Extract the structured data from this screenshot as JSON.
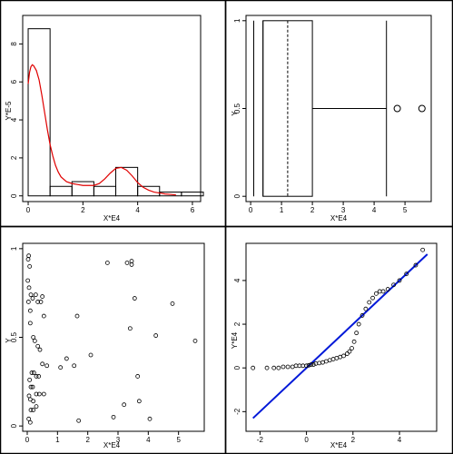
{
  "chart_data": [
    {
      "type": "bar",
      "panel": "top-left",
      "xlabel": "X*E4",
      "ylabel": "Y*E-5",
      "xlim": [
        -0.2,
        6.3
      ],
      "ylim": [
        -0.3,
        9.5
      ],
      "xticks": [
        0,
        2,
        4,
        6
      ],
      "yticks": [
        0,
        2,
        4,
        6,
        8
      ],
      "bins": [
        {
          "x0": 0,
          "x1": 0.8,
          "height": 8.8
        },
        {
          "x0": 0.8,
          "x1": 1.6,
          "height": 0.5
        },
        {
          "x0": 1.6,
          "x1": 2.4,
          "height": 0.75
        },
        {
          "x0": 2.4,
          "x1": 3.2,
          "height": 0.5
        },
        {
          "x0": 3.2,
          "x1": 4.0,
          "height": 1.5
        },
        {
          "x0": 4.0,
          "x1": 4.8,
          "height": 0.5
        },
        {
          "x0": 4.8,
          "x1": 5.6,
          "height": 0.2
        },
        {
          "x0": 5.6,
          "x1": 6.4,
          "height": 0.2
        }
      ],
      "density": {
        "color": "#e00000",
        "x": [
          0,
          0.05,
          0.1,
          0.15,
          0.2,
          0.3,
          0.4,
          0.5,
          0.6,
          0.7,
          0.8,
          0.9,
          1.0,
          1.1,
          1.2,
          1.4,
          1.6,
          1.8,
          2.0,
          2.2,
          2.4,
          2.6,
          2.8,
          3.0,
          3.2,
          3.4,
          3.6,
          3.8,
          4.0,
          4.2,
          4.4,
          4.6,
          4.8,
          5.0,
          5.2,
          5.4
        ],
        "y": [
          5.9,
          6.5,
          6.8,
          6.9,
          6.85,
          6.6,
          6.1,
          5.3,
          4.4,
          3.5,
          2.7,
          2.1,
          1.6,
          1.25,
          1.0,
          0.75,
          0.65,
          0.6,
          0.55,
          0.55,
          0.55,
          0.65,
          0.9,
          1.2,
          1.45,
          1.5,
          1.35,
          1.05,
          0.7,
          0.45,
          0.3,
          0.2,
          0.15,
          0.1,
          0.08,
          0.05
        ]
      }
    },
    {
      "type": "boxplot",
      "panel": "top-right",
      "xlabel": "X*E4",
      "ylabel": "Y",
      "xlim": [
        -0.15,
        5.85
      ],
      "ylim": [
        -0.03,
        1.03
      ],
      "xticks": [
        0,
        1,
        2,
        3,
        4,
        5
      ],
      "yticks": [
        0,
        0.5,
        1
      ],
      "ytick_labels": [
        "0",
        "0.5",
        "1"
      ],
      "box": {
        "min": 0.1,
        "q1": 0.4,
        "median": 1.2,
        "q3": 2.0,
        "whisker_high": 4.4,
        "y_low": 0,
        "y_high": 1
      },
      "extra_lines": [
        0.1,
        0.4
      ],
      "outliers": [
        4.75,
        5.55
      ],
      "outlier_y": 0.5
    },
    {
      "type": "scatter",
      "panel": "bottom-left",
      "xlabel": "X*E4",
      "ylabel": "Y",
      "xlim": [
        -0.15,
        5.85
      ],
      "ylim": [
        -0.03,
        1.03
      ],
      "xticks": [
        0,
        1,
        2,
        3,
        4,
        5
      ],
      "yticks": [
        0,
        0.5,
        1
      ],
      "ytick_labels": [
        "0",
        "0.5",
        "1"
      ],
      "x": [
        0.05,
        0.03,
        0.08,
        0.02,
        0.06,
        0.12,
        0.04,
        0.1,
        0.18,
        0.28,
        0.35,
        0.45,
        0.5,
        0.55,
        0.1,
        0.2,
        0.25,
        0.35,
        0.42,
        0.5,
        0.15,
        0.22,
        0.3,
        0.38,
        0.08,
        0.12,
        0.18,
        0.3,
        0.4,
        0.55,
        0.06,
        0.1,
        0.2,
        0.3,
        0.12,
        0.2,
        0.05,
        0.1,
        0.65,
        1.1,
        1.55,
        1.3,
        1.65,
        2.1,
        1.7,
        2.65,
        2.85,
        3.3,
        3.45,
        3.45,
        3.55,
        3.4,
        3.65,
        4.25,
        4.8,
        5.55,
        3.7,
        3.2,
        4.05
      ],
      "y": [
        0.96,
        0.94,
        0.9,
        0.82,
        0.78,
        0.74,
        0.7,
        0.65,
        0.72,
        0.74,
        0.7,
        0.7,
        0.73,
        0.62,
        0.58,
        0.5,
        0.48,
        0.45,
        0.43,
        0.35,
        0.3,
        0.3,
        0.28,
        0.28,
        0.26,
        0.22,
        0.22,
        0.18,
        0.18,
        0.18,
        0.17,
        0.15,
        0.14,
        0.11,
        0.09,
        0.09,
        0.04,
        0.02,
        0.34,
        0.33,
        0.34,
        0.38,
        0.62,
        0.4,
        0.03,
        0.92,
        0.05,
        0.92,
        0.93,
        0.91,
        0.72,
        0.55,
        0.28,
        0.51,
        0.69,
        0.48,
        0.14,
        0.12,
        0.04
      ]
    },
    {
      "type": "scatter",
      "panel": "bottom-right",
      "xlabel": "X*E4",
      "ylabel": "Y*E4",
      "xlim": [
        -2.6,
        5.6
      ],
      "ylim": [
        -2.9,
        5.7
      ],
      "xticks": [
        -2,
        0,
        2,
        4
      ],
      "yticks": [
        -2,
        0,
        2,
        4
      ],
      "x": [
        -2.3,
        -1.7,
        -1.4,
        -1.2,
        -1.0,
        -0.8,
        -0.6,
        -0.45,
        -0.3,
        -0.15,
        0,
        0.1,
        0.2,
        0.3,
        0.4,
        0.55,
        0.7,
        0.85,
        1.0,
        1.15,
        1.3,
        1.45,
        1.6,
        1.75,
        1.85,
        1.95,
        2.05,
        2.15,
        2.25,
        2.4,
        2.55,
        2.7,
        2.85,
        3.0,
        3.15,
        3.3,
        3.5,
        3.75,
        4.0,
        4.3,
        4.7,
        5.0
      ],
      "y": [
        0.0,
        0.0,
        0.0,
        0.0,
        0.05,
        0.05,
        0.05,
        0.1,
        0.1,
        0.1,
        0.1,
        0.12,
        0.15,
        0.15,
        0.2,
        0.22,
        0.25,
        0.3,
        0.35,
        0.4,
        0.45,
        0.5,
        0.55,
        0.65,
        0.75,
        0.9,
        1.2,
        1.6,
        2.0,
        2.4,
        2.7,
        3.0,
        3.2,
        3.4,
        3.5,
        3.5,
        3.6,
        3.8,
        4.0,
        4.3,
        4.7,
        5.4
      ],
      "reference_line": {
        "color": "#0018d8",
        "x": [
          -2.3,
          5.2
        ],
        "y": [
          -2.3,
          5.2
        ]
      }
    }
  ]
}
